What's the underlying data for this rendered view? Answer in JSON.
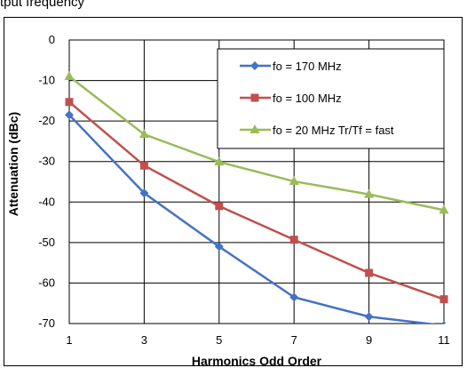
{
  "top_caption": "tput frequency",
  "chart_data": {
    "type": "line",
    "title": "",
    "xlabel": "Harmonics Odd Order",
    "ylabel": "Attenuation  (dBc)",
    "x": [
      1,
      3,
      5,
      7,
      9,
      11
    ],
    "xticks": [
      1,
      3,
      5,
      7,
      9,
      11
    ],
    "yticks": [
      0,
      -10,
      -20,
      -30,
      -40,
      -50,
      -60,
      -70
    ],
    "xlim": [
      1,
      11
    ],
    "ylim": [
      -70,
      0
    ],
    "grid": true,
    "legend_position": "top-right",
    "series": [
      {
        "name": "fo = 170 MHz",
        "color": "#4472c4",
        "marker": "diamond",
        "values": [
          -18.5,
          -37.8,
          -51,
          -63.5,
          -68.3,
          -70.5
        ]
      },
      {
        "name": "fo = 100 MHz",
        "color": "#c0504d",
        "marker": "square",
        "values": [
          -15.3,
          -31,
          -41,
          -49.3,
          -57.5,
          -64
        ]
      },
      {
        "name": "fo = 20 MHz Tr/Tf = fast",
        "color": "#9bbb59",
        "marker": "triangle",
        "values": [
          -9,
          -23.3,
          -30.1,
          -34.9,
          -38.1,
          -42
        ]
      }
    ]
  }
}
